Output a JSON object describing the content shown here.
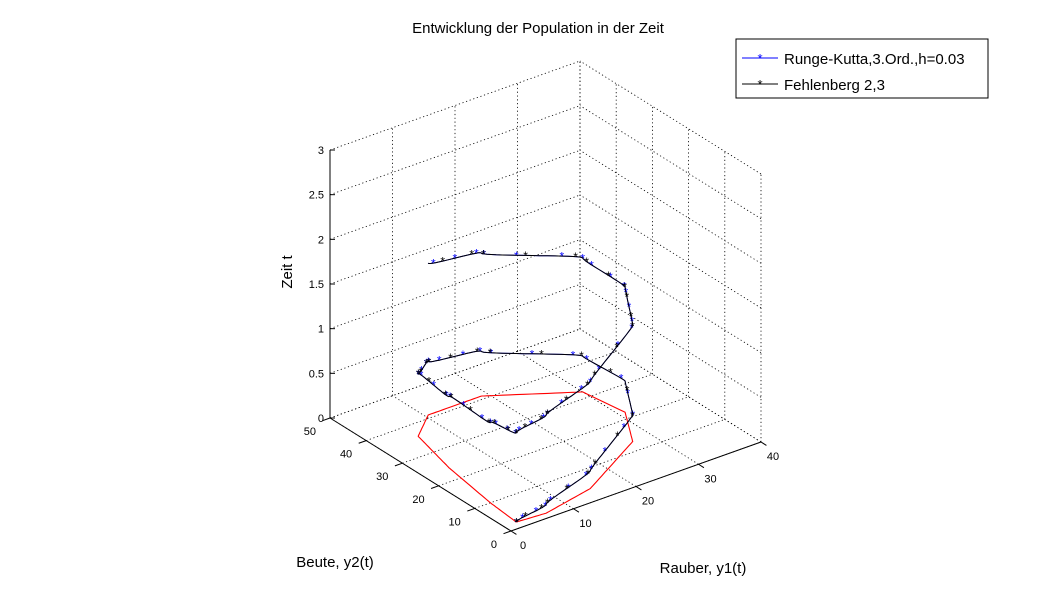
{
  "chart_data": {
    "type": "line3d",
    "title": "Entwicklung der Population in der Zeit",
    "xlabel": "Rauber, y1(t)",
    "ylabel": "Beute, y2(t)",
    "zlabel": "Zeit t",
    "xlim": [
      0,
      40
    ],
    "ylim": [
      0,
      50
    ],
    "zlim": [
      0,
      3
    ],
    "xticks": [
      "0",
      "10",
      "20",
      "30",
      "40"
    ],
    "yticks": [
      "0",
      "10",
      "20",
      "30",
      "40",
      "50"
    ],
    "zticks": [
      "0",
      "0.5",
      "1",
      "1.5",
      "2",
      "2.5",
      "3"
    ],
    "grid": true,
    "legend_position": "top-right",
    "series": [
      {
        "name": "Runge-Kutta,3.Ord.,h=0.03",
        "color": "#0000ff",
        "marker": "*",
        "step": 0.03
      },
      {
        "name": "Fehlenberg 2,3",
        "color": "#000000",
        "marker": "*",
        "step": 0.037
      },
      {
        "color": "#ff0000",
        "marker": "none",
        "projection": "z=0"
      }
    ],
    "trajectory_approx": {
      "t": [
        0,
        0.1,
        0.2,
        0.3,
        0.35,
        0.4,
        0.5,
        0.6,
        0.7,
        0.8,
        0.9,
        1.0,
        1.1,
        1.2,
        1.3,
        1.4,
        1.5,
        1.6,
        1.7
      ],
      "y1": [
        2,
        6.5,
        15,
        27,
        31,
        30,
        19,
        10.5,
        6,
        4,
        2.5,
        2,
        6.5,
        15,
        27,
        31,
        30,
        19,
        10.5
      ],
      "y2": [
        2,
        1.5,
        4,
        13,
        22,
        32,
        41,
        41,
        36,
        24,
        10,
        2,
        1.5,
        4,
        13,
        22,
        32,
        41,
        41
      ]
    }
  }
}
